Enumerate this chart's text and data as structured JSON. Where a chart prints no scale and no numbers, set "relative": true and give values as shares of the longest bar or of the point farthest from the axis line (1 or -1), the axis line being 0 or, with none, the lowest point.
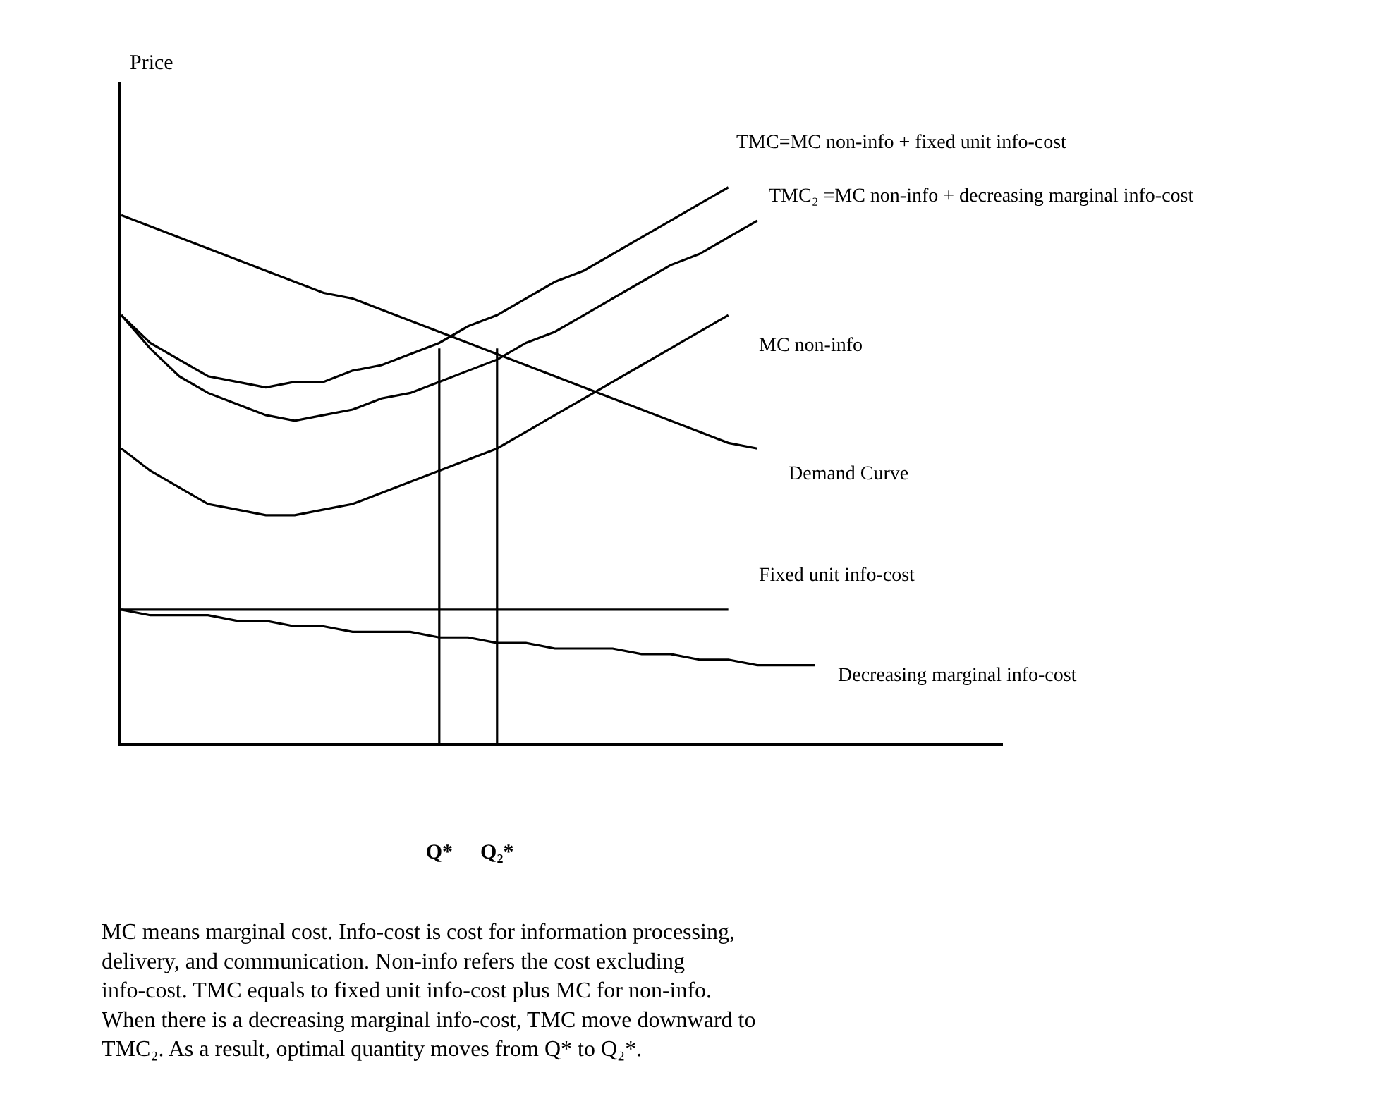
{
  "chart_data": {
    "type": "line",
    "relative": true,
    "legend": false,
    "marker": "none",
    "line_style": "solid",
    "categories": [
      null,
      null,
      null,
      null,
      null,
      null,
      null,
      null,
      null,
      null,
      null,
      "Q*",
      null,
      "Q₂*",
      null,
      null,
      null,
      null,
      null,
      null,
      null,
      null,
      null,
      null,
      null,
      null,
      null,
      null,
      null,
      null,
      null
    ],
    "series": [
      {
        "name": "TMC=MC non-info + fixed unit info-cost",
        "color": "#000000",
        "values": [
          0.77,
          0.72,
          0.69,
          0.66,
          0.65,
          0.64,
          0.65,
          0.65,
          0.67,
          0.68,
          0.7,
          0.72,
          0.75,
          0.77,
          0.8,
          0.83,
          0.85,
          0.88,
          0.91,
          0.94,
          0.97,
          1.0,
          null,
          null,
          null,
          null,
          null,
          null,
          null,
          null,
          null
        ]
      },
      {
        "name": "TMC₂ =MC non-info + decreasing marginal info-cost",
        "color": "#000000",
        "values": [
          0.77,
          0.71,
          0.66,
          0.63,
          0.61,
          0.59,
          0.58,
          0.59,
          0.6,
          0.62,
          0.63,
          0.65,
          0.67,
          0.69,
          0.72,
          0.74,
          0.77,
          0.8,
          0.83,
          0.86,
          0.88,
          0.91,
          0.94,
          null,
          null,
          null,
          null,
          null,
          null,
          null,
          null
        ]
      },
      {
        "name": "MC non-info",
        "color": "#000000",
        "values": [
          0.53,
          0.49,
          0.46,
          0.43,
          0.42,
          0.41,
          0.41,
          0.42,
          0.43,
          0.45,
          0.47,
          0.49,
          0.51,
          0.53,
          0.56,
          0.59,
          0.62,
          0.65,
          0.68,
          0.71,
          0.74,
          0.77,
          null,
          null,
          null,
          null,
          null,
          null,
          null,
          null,
          null
        ]
      },
      {
        "name": "Demand Curve",
        "color": "#000000",
        "values": [
          0.95,
          0.93,
          0.91,
          0.89,
          0.87,
          0.85,
          0.83,
          0.81,
          0.8,
          0.78,
          0.76,
          0.74,
          0.72,
          0.7,
          0.68,
          0.66,
          0.64,
          0.62,
          0.6,
          0.58,
          0.56,
          0.54,
          0.53,
          null,
          null,
          null,
          null,
          null,
          null,
          null,
          null
        ]
      },
      {
        "name": "Fixed unit info-cost",
        "color": "#000000",
        "values": [
          0.24,
          0.24,
          0.24,
          0.24,
          0.24,
          0.24,
          0.24,
          0.24,
          0.24,
          0.24,
          0.24,
          0.24,
          0.24,
          0.24,
          0.24,
          0.24,
          0.24,
          0.24,
          0.24,
          0.24,
          0.24,
          0.24,
          null,
          null,
          null,
          null,
          null,
          null,
          null,
          null,
          null
        ]
      },
      {
        "name": "Decreasing marginal info-cost",
        "color": "#000000",
        "values": [
          0.24,
          0.23,
          0.23,
          0.23,
          0.22,
          0.22,
          0.21,
          0.21,
          0.2,
          0.2,
          0.2,
          0.19,
          0.19,
          0.18,
          0.18,
          0.17,
          0.17,
          0.17,
          0.16,
          0.16,
          0.15,
          0.15,
          0.14,
          0.14,
          0.14,
          null,
          null,
          null,
          null,
          null,
          null
        ]
      },
      {
        "color": "#000000",
        "x": [
          "Q*",
          "Q*"
        ],
        "values": [
          0,
          0.71
        ]
      },
      {
        "color": "#000000",
        "x": [
          "Q₂*",
          "Q₂*"
        ],
        "values": [
          0,
          0.71
        ]
      }
    ],
    "annotations": [
      "Price",
      "MC means marginal cost. Info-cost is cost for information processing, delivery, and communication. Non-info refers the cost excluding info-cost. TMC equals to fixed unit info-cost plus MC for non-info. When there is a decreasing marginal info-cost, TMC move downward to TMC₂. As a result, optimal quantity moves from Q* to Q₂*."
    ]
  }
}
